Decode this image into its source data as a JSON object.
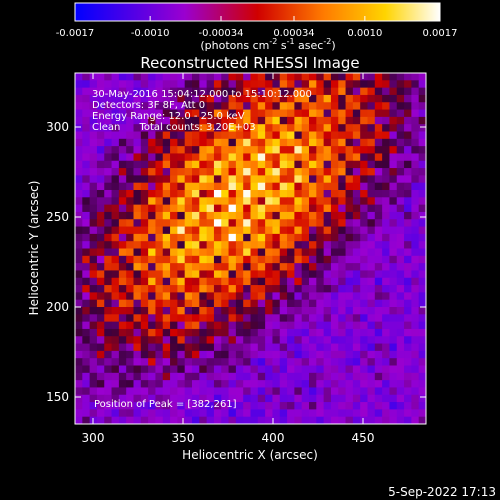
{
  "colorbar": {
    "ticks": [
      "-0.0017",
      "-0.0010",
      "-0.00034",
      "0.00034",
      "0.0010",
      "0.0017"
    ],
    "tick_values": [
      -0.0017,
      -0.001,
      -0.00034,
      0.00034,
      0.001,
      0.0017
    ],
    "range": [
      -0.0017,
      0.0017
    ],
    "unit_main": "(photons cm",
    "unit_sup1": "-2",
    "unit_mid": " s",
    "unit_sup2": "-1",
    "unit_end": " asec",
    "unit_sup3": "-2",
    "unit_close": ")",
    "colors": [
      "#0000ff",
      "#9a00d0",
      "#d00000",
      "#ff7a00",
      "#ffd400",
      "#ffffff"
    ]
  },
  "chart_data": {
    "type": "heatmap",
    "title": "Reconstructed RHESSI Image",
    "xlabel": "Heliocentric X (arcsec)",
    "ylabel": "Heliocentric Y (arcsec)",
    "xlim": [
      290,
      485
    ],
    "ylim": [
      135,
      330
    ],
    "x_ticks": [
      300,
      350,
      400,
      450
    ],
    "y_ticks": [
      150,
      200,
      250,
      300
    ],
    "peak": [
      382,
      261
    ],
    "annotations": [
      "30-May-2016 15:04:12.000 to 15:10:12.000",
      "Detectors: 3F 8F, Att 0",
      "Energy Range: 12.0 - 25.0 keV",
      "Clean      Total counts: 3.20E+03"
    ],
    "peak_label": "Position of Peak = [382,261]"
  },
  "footer": {
    "date": "5-Sep-2022 17:13"
  }
}
